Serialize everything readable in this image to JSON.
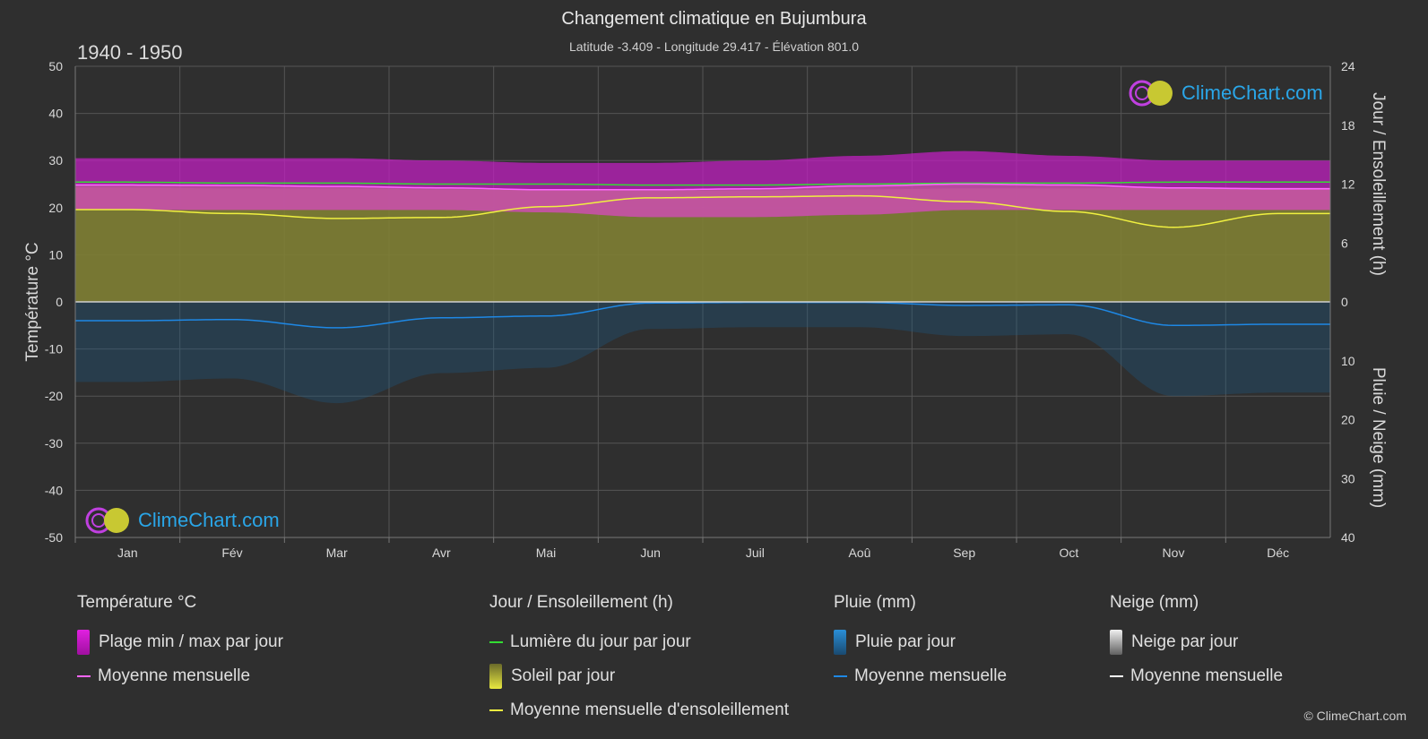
{
  "title": "Changement climatique en Bujumbura",
  "subtitle": "Latitude -3.409 - Longitude 29.417 - Élévation 801.0",
  "period": "1940 - 1950",
  "logo_text": "ClimeChart.com",
  "copyright": "© ClimeChart.com",
  "colors": {
    "background": "#2f2f2f",
    "temp_range": "#e020e0",
    "temp_mean": "#ff66ff",
    "daylight": "#33dd33",
    "sunshine": "#c8c832",
    "sunshine_mean": "#f0f040",
    "rain": "#2a8fd8",
    "rain_mean": "#1e88e5",
    "snow": "#d0d0d0",
    "snow_mean": "#ffffff",
    "logo": "#2aa6e8"
  },
  "legend": {
    "temperature": {
      "header": "Température °C",
      "range": "Plage min / max par jour",
      "mean": "Moyenne mensuelle"
    },
    "sun": {
      "header": "Jour / Ensoleillement (h)",
      "daylight": "Lumière du jour par jour",
      "sunshine": "Soleil par jour",
      "sunshine_mean": "Moyenne mensuelle d'ensoleillement"
    },
    "rain": {
      "header": "Pluie (mm)",
      "daily": "Pluie par jour",
      "mean": "Moyenne mensuelle"
    },
    "snow": {
      "header": "Neige (mm)",
      "daily": "Neige par jour",
      "mean": "Moyenne mensuelle"
    }
  },
  "chart_data": {
    "type": "area",
    "categories": [
      "Jan",
      "Fév",
      "Mar",
      "Avr",
      "Mai",
      "Jun",
      "Juil",
      "Aoû",
      "Sep",
      "Oct",
      "Nov",
      "Déc"
    ],
    "y_left": {
      "label": "Température °C",
      "ylim": [
        -50,
        50
      ],
      "ticks": [
        50,
        40,
        30,
        20,
        10,
        0,
        -10,
        -20,
        -30,
        -40,
        -50
      ]
    },
    "y_right_top": {
      "label": "Jour / Ensoleillement (h)",
      "ylim": [
        0,
        24
      ],
      "ticks": [
        24,
        18,
        12,
        6,
        0
      ]
    },
    "y_right_bottom": {
      "label": "Pluie / Neige (mm)",
      "ylim": [
        0,
        40
      ],
      "ticks": [
        10,
        20,
        30,
        40
      ]
    },
    "grid": true,
    "series": [
      {
        "name": "Plage min / max par jour",
        "min": [
          19.5,
          19.5,
          19.5,
          19.5,
          19.0,
          18.0,
          18.0,
          18.5,
          19.5,
          19.5,
          19.5,
          19.5
        ],
        "max": [
          30.5,
          30.5,
          30.5,
          30.0,
          29.5,
          29.5,
          30.0,
          31.0,
          32.0,
          31.0,
          30.0,
          30.0
        ]
      },
      {
        "name": "Moyenne mensuelle (température)",
        "values": [
          24.8,
          24.7,
          24.5,
          24.2,
          23.8,
          23.8,
          24.0,
          24.6,
          25.0,
          24.8,
          24.2,
          24.0
        ]
      },
      {
        "name": "Lumière du jour par jour",
        "values": [
          12.2,
          12.1,
          12.1,
          12.0,
          12.0,
          11.9,
          11.9,
          12.0,
          12.1,
          12.1,
          12.2,
          12.2
        ]
      },
      {
        "name": "Moyenne mensuelle d'ensoleillement",
        "values": [
          9.4,
          9.0,
          8.5,
          8.6,
          9.7,
          10.6,
          10.7,
          10.8,
          10.2,
          9.2,
          7.6,
          9.0
        ]
      },
      {
        "name": "Moyenne mensuelle (pluie)",
        "values": [
          3.2,
          3.0,
          4.4,
          2.7,
          2.4,
          0.2,
          0.1,
          0.1,
          0.6,
          0.5,
          4.0,
          3.8
        ]
      }
    ]
  }
}
